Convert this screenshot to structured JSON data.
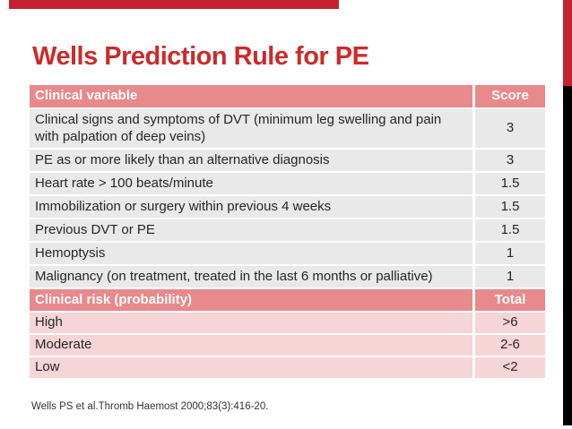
{
  "title": {
    "text": "Wells Prediction Rule for PE"
  },
  "table": {
    "header": {
      "variable": "Clinical variable",
      "score": "Score"
    },
    "rows": [
      {
        "variable": "Clinical signs and symptoms of DVT (minimum leg swelling and pain with palpation of deep veins)",
        "score": "3"
      },
      {
        "variable": "PE as or more likely than an alternative diagnosis",
        "score": "3"
      },
      {
        "variable": "Heart rate > 100 beats/minute",
        "score": "1.5"
      },
      {
        "variable": "Immobilization or surgery within previous 4 weeks",
        "score": "1.5"
      },
      {
        "variable": "Previous DVT or PE",
        "score": "1.5"
      },
      {
        "variable": "Hemoptysis",
        "score": "1"
      },
      {
        "variable": "Malignancy (on treatment, treated in the last 6 months or palliative)",
        "score": "1"
      }
    ],
    "risk_header": {
      "label": "Clinical risk (probability)",
      "total": "Total"
    },
    "risk_rows": [
      {
        "label": "High",
        "total": ">6"
      },
      {
        "label": "Moderate",
        "total": "2-6"
      },
      {
        "label": "Low",
        "total": "<2"
      }
    ]
  },
  "footer": {
    "citation": "Wells PS et al.Thromb Haemost 2000;83(3):416-20."
  },
  "colors": {
    "accent_red": "#c42231",
    "title_red": "#cb2b2b",
    "table_header_bg": "#e8898c",
    "row_gray": "#e9e9e9",
    "row_pink": "#f6d5d6",
    "sidebar_black": "#000000",
    "header_text": "#ffffff",
    "body_text": "#262626",
    "footer_text": "#333333"
  }
}
